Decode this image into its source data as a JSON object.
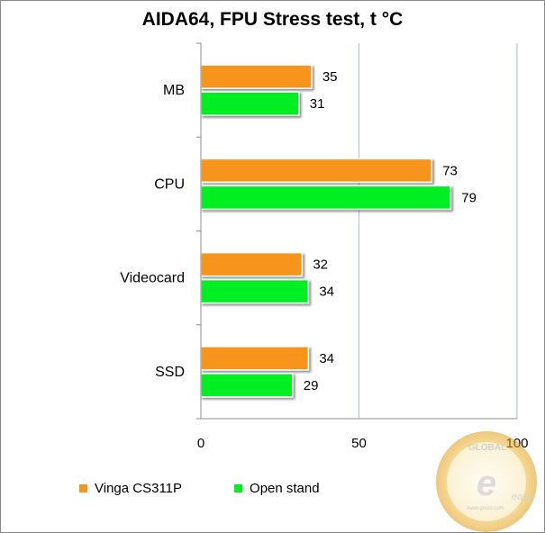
{
  "chart_data": {
    "type": "bar",
    "orientation": "horizontal",
    "title": "AIDA64, FPU Stress test, t °C",
    "categories": [
      "MB",
      "CPU",
      "Videocard",
      "SSD"
    ],
    "series": [
      {
        "name": "Vinga CS311P",
        "color": "#f7941d",
        "values": [
          35,
          73,
          32,
          34
        ]
      },
      {
        "name": "Open stand",
        "color": "#00ee22",
        "values": [
          31,
          79,
          34,
          29
        ]
      }
    ],
    "xlim": [
      0,
      100
    ],
    "xticks": [
      0,
      50,
      100
    ],
    "grid": true,
    "legend": "bottom",
    "xlabel": "",
    "ylabel": ""
  },
  "watermark": {
    "text_global": "GLOBAL",
    "text_easy": "easy",
    "text_url": "www.gecid.com"
  }
}
